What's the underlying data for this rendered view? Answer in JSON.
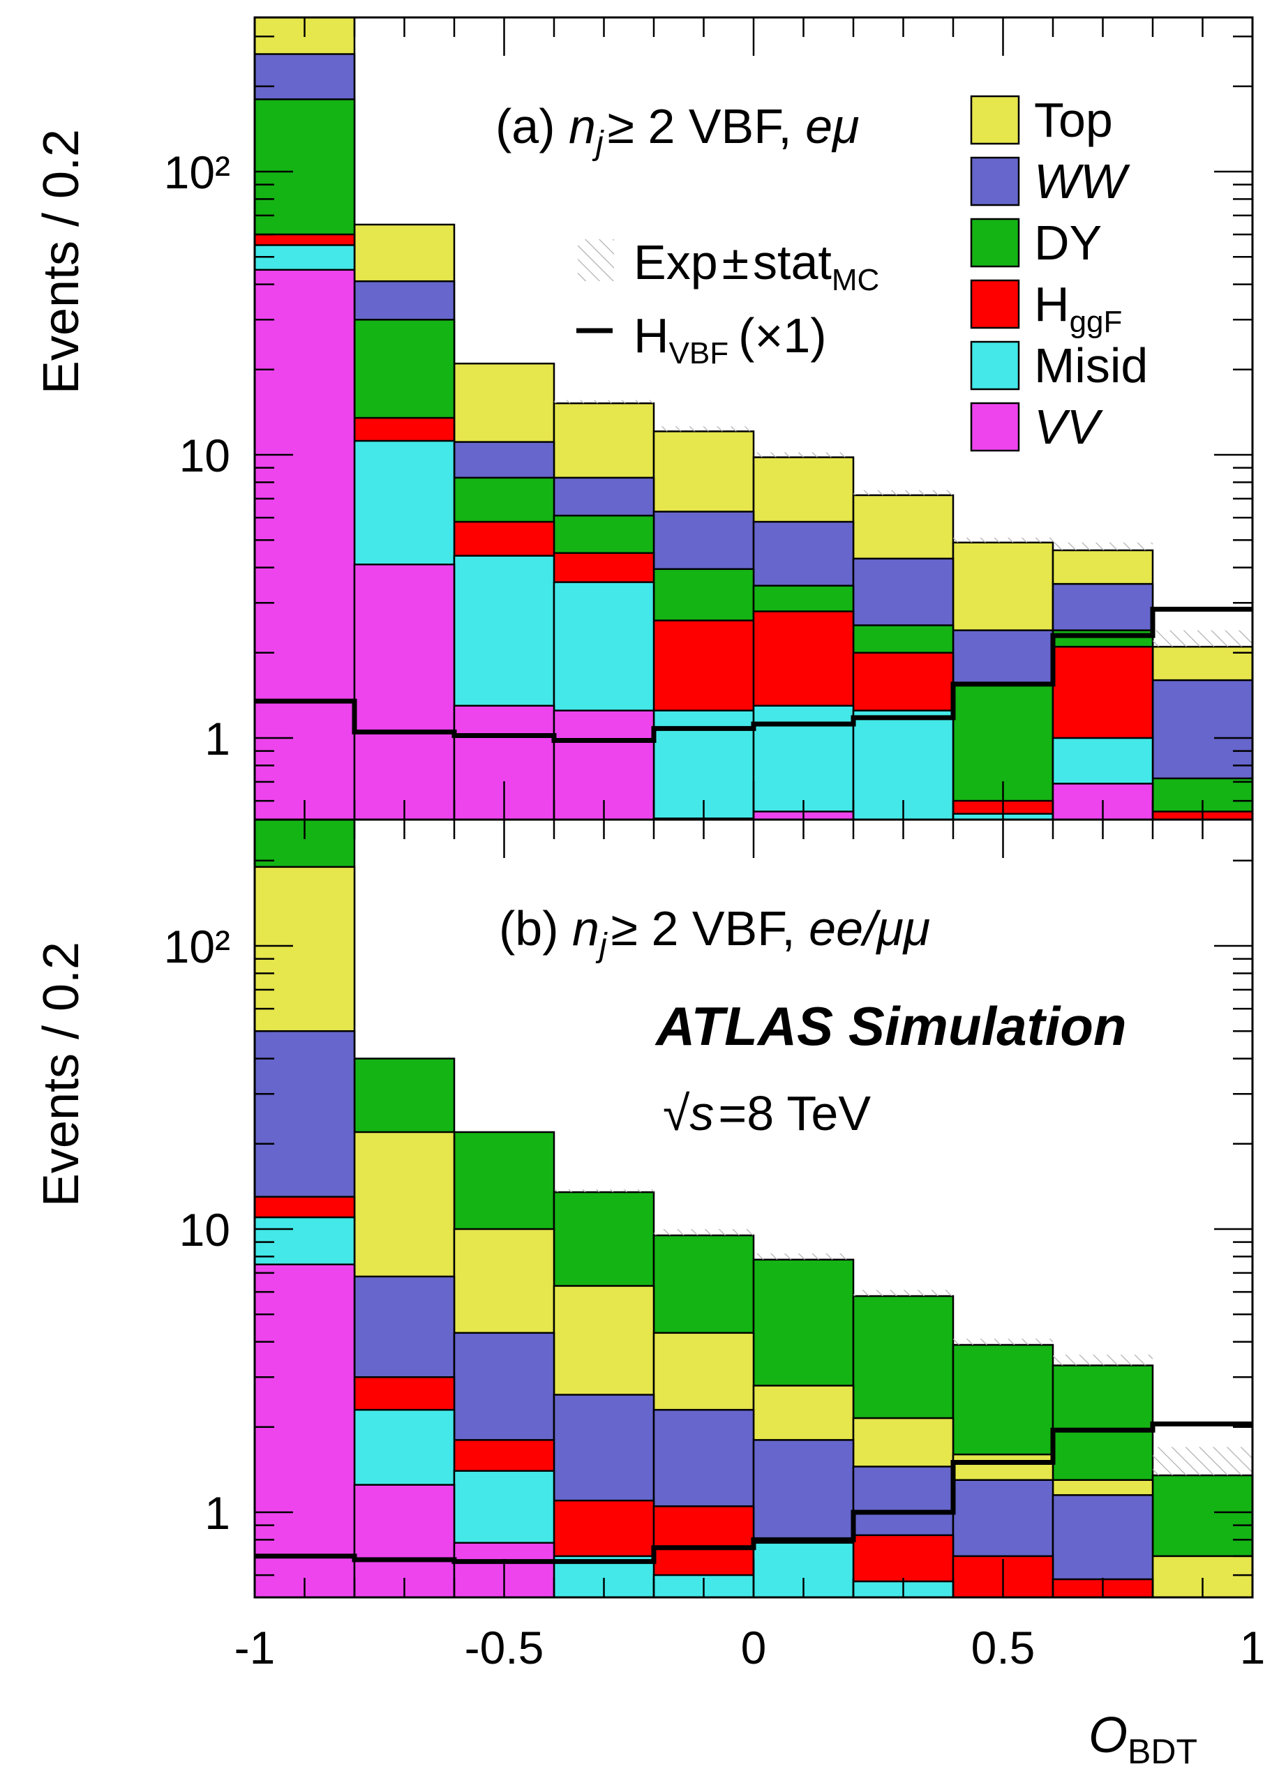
{
  "chart_data": {
    "type": "stacked-histogram",
    "x_title_main": "O",
    "x_title_sub": "BDT",
    "x_ticks": [
      "-1",
      "-0.5",
      "0",
      "0.5",
      "1"
    ],
    "xlim": [
      -1,
      1
    ],
    "bin_edges": [
      -1,
      -0.8,
      -0.6,
      -0.4,
      -0.2,
      0,
      0.2,
      0.4,
      0.6,
      0.8,
      1
    ],
    "y_scale": "log",
    "brand_text": "ATLAS Simulation",
    "energy_text": "√s = 8 TeV",
    "energy_parts": {
      "sqrt": "√",
      "s": "s",
      "eq": "=8 TeV"
    },
    "stack_legend": [
      {
        "key": "top",
        "label": "Top",
        "color": "#e6e64d",
        "italic": false
      },
      {
        "key": "ww",
        "label": "WW",
        "color": "#6666cc",
        "italic": true
      },
      {
        "key": "dy",
        "label": "DY",
        "color": "#14b414",
        "italic": false
      },
      {
        "key": "ggf",
        "label": "H",
        "sub": "ggF",
        "color": "#ff0000",
        "italic": false
      },
      {
        "key": "misid",
        "label": "Misid",
        "color": "#44e8e8",
        "italic": false
      },
      {
        "key": "vv",
        "label": "VV",
        "color": "#ee44ee",
        "italic": true
      }
    ],
    "line_legend": {
      "exp_label": "Exp ± stat",
      "exp_sub": "MC",
      "exp_parts": {
        "main": "Exp",
        "pm": "±",
        "stat": "stat",
        "sub": "MC"
      },
      "hvbf_label": "H",
      "hvbf_sub": "VBF",
      "hvbf_suffix": "(×1)"
    },
    "panels": [
      {
        "id": "a",
        "title": "(a) n_j ≥ 2 VBF, eμ",
        "title_parts": {
          "pre": "(a) ",
          "n": "n",
          "j": "j",
          "mid": "≥ 2 VBF, ",
          "chan": "eμ"
        },
        "y_title": "Events / 0.2",
        "y_ticks": [
          "1",
          "10",
          "10²"
        ],
        "ylim": [
          0.4,
          1000
        ],
        "stack_order": [
          "vv",
          "misid",
          "ggf",
          "dy",
          "ww",
          "top"
        ],
        "stack_cumulative": {
          "vv": [
            45,
            4.1,
            1.3,
            1.25,
            0.52,
            0.55,
            0.43,
            0.42,
            0.69,
            0.42
          ],
          "misid": [
            55,
            11.2,
            4.4,
            3.55,
            1.25,
            1.3,
            1.25,
            0.54,
            1.0,
            0.42
          ],
          "ggf": [
            60,
            13.5,
            5.8,
            4.5,
            2.6,
            2.8,
            2.0,
            0.6,
            2.1,
            0.55
          ],
          "dy": [
            180,
            30,
            8.3,
            6.1,
            3.95,
            3.45,
            2.5,
            1.55,
            2.4,
            0.72
          ],
          "ww": [
            260,
            41,
            11.1,
            8.3,
            6.3,
            5.8,
            4.3,
            2.4,
            3.5,
            1.6
          ],
          "top": [
            600,
            65,
            21,
            15.2,
            12.1,
            9.8,
            7.2,
            4.9,
            4.6,
            2.1
          ]
        },
        "exp_band": [
          600,
          65,
          21,
          15.6,
          12.6,
          10.2,
          7.5,
          5.1,
          4.9,
          2.4
        ],
        "h_vbf": [
          1.35,
          1.05,
          1.02,
          0.98,
          1.08,
          1.12,
          1.18,
          1.55,
          2.3,
          2.85
        ]
      },
      {
        "id": "b",
        "title": "(b) n_j ≥ 2 VBF, ee/μμ",
        "title_parts": {
          "pre": "(b) ",
          "n": "n",
          "j": "j",
          "mid": "≥ 2 VBF, ",
          "chan": "ee/μμ"
        },
        "y_title": "Events / 0.2",
        "y_ticks": [
          "1",
          "10",
          "10²"
        ],
        "ylim": [
          0.4,
          1000
        ],
        "stack_order": [
          "vv",
          "misid",
          "ggf",
          "ww",
          "top",
          "dy"
        ],
        "stack_cumulative": {
          "vv": [
            7.5,
            1.25,
            0.78,
            0.42,
            0.42,
            0.42,
            0.42,
            0.44,
            0.42,
            0.42
          ],
          "misid": [
            11,
            2.3,
            1.4,
            0.7,
            0.6,
            0.78,
            0.57,
            0.44,
            0.42,
            0.42
          ],
          "ggf": [
            13,
            3.0,
            1.8,
            1.1,
            1.05,
            0.78,
            0.83,
            0.7,
            0.58,
            0.42
          ],
          "ww": [
            50,
            6.8,
            4.3,
            2.6,
            2.3,
            1.8,
            1.45,
            1.3,
            1.15,
            0.47
          ],
          "top": [
            190,
            22,
            10,
            6.3,
            4.3,
            2.8,
            2.15,
            1.6,
            1.3,
            0.7
          ],
          "dy": [
            600,
            40,
            22,
            13.5,
            9.5,
            7.8,
            5.8,
            3.9,
            3.3,
            1.35
          ]
        },
        "exp_band": [
          600,
          40,
          22,
          13.8,
          10.0,
          8.2,
          6.1,
          4.1,
          3.6,
          1.7
        ],
        "h_vbf": [
          0.7,
          0.68,
          0.67,
          0.67,
          0.75,
          0.8,
          1.0,
          1.5,
          1.95,
          2.05
        ]
      }
    ]
  }
}
